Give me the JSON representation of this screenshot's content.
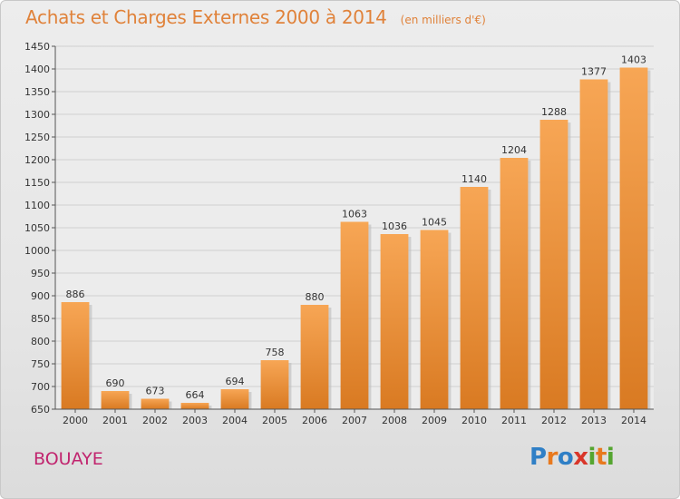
{
  "header": {
    "title": "Achats et Charges Externes 2000 à 2014",
    "unit": "(en milliers d'€)"
  },
  "footer": {
    "town": "BOUAYE",
    "logo": [
      "P",
      "r",
      "o",
      "x",
      "i",
      "t",
      "i"
    ],
    "logo_colors": [
      "#2f7fc6",
      "#e8791e",
      "#2f7fc6",
      "#d9362a",
      "#55a530",
      "#e8791e",
      "#55a530"
    ]
  },
  "chart_data": {
    "type": "bar",
    "categories": [
      "2000",
      "2001",
      "2002",
      "2003",
      "2004",
      "2005",
      "2006",
      "2007",
      "2008",
      "2009",
      "2010",
      "2011",
      "2012",
      "2013",
      "2014"
    ],
    "values": [
      886,
      690,
      673,
      664,
      694,
      758,
      880,
      1063,
      1036,
      1045,
      1140,
      1204,
      1288,
      1377,
      1403
    ],
    "ylim": [
      650,
      1450
    ],
    "yticks": [
      650,
      700,
      750,
      800,
      850,
      900,
      950,
      1000,
      1050,
      1100,
      1150,
      1200,
      1250,
      1300,
      1350,
      1400,
      1450
    ],
    "grid": true,
    "bar_color_light": "#f7a655",
    "bar_color_dark": "#d97a22"
  }
}
